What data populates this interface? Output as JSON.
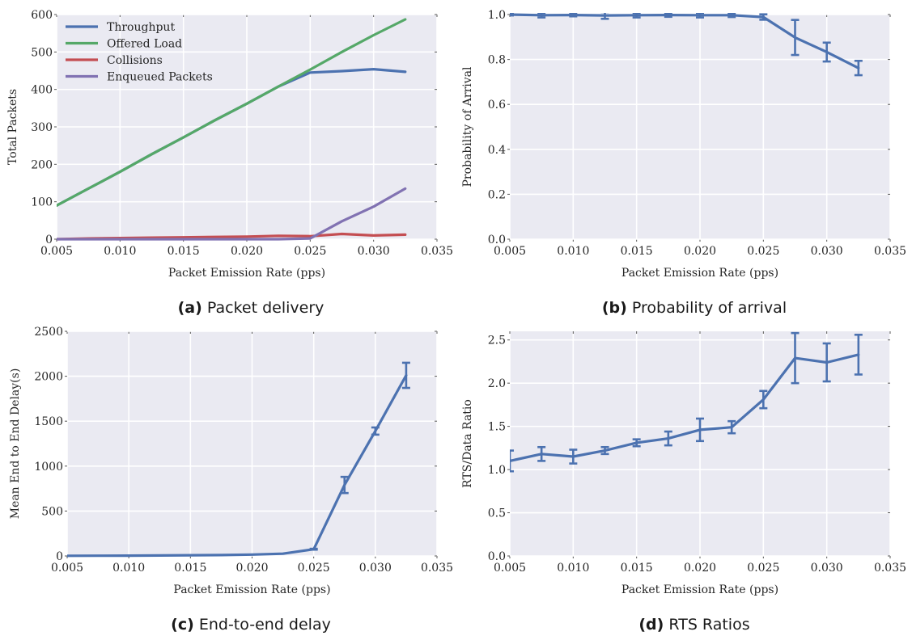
{
  "colors": {
    "blue": "#4c72b0",
    "green": "#55a868",
    "red": "#c44e52",
    "purple": "#8172b2"
  },
  "chart_data": [
    {
      "id": "a",
      "type": "line",
      "caption_tag": "(a)",
      "caption": "Packet delivery",
      "xlabel": "Packet Emission Rate (pps)",
      "ylabel": "Total Packets",
      "xlim": [
        0.005,
        0.035
      ],
      "ylim": [
        0,
        600
      ],
      "xticks": [
        "0.005",
        "0.010",
        "0.015",
        "0.020",
        "0.025",
        "0.030",
        "0.035"
      ],
      "yticks": [
        "0",
        "100",
        "200",
        "300",
        "400",
        "500",
        "600"
      ],
      "grid": true,
      "legend_position": "top-left",
      "series": [
        {
          "name": "Throughput",
          "color": "#4c72b0",
          "x": [
            0.005,
            0.0075,
            0.01,
            0.0125,
            0.015,
            0.0175,
            0.02,
            0.0225,
            0.025,
            0.0275,
            0.03,
            0.0325
          ],
          "y": [
            90,
            135,
            180,
            227,
            272,
            318,
            362,
            408,
            445,
            449,
            454,
            447
          ]
        },
        {
          "name": "Offered Load",
          "color": "#55a868",
          "x": [
            0.005,
            0.0075,
            0.01,
            0.0125,
            0.015,
            0.0175,
            0.02,
            0.0225,
            0.025,
            0.0275,
            0.03,
            0.0325
          ],
          "y": [
            90,
            135,
            180,
            227,
            272,
            318,
            362,
            408,
            453,
            500,
            545,
            587
          ]
        },
        {
          "name": "Collisions",
          "color": "#c44e52",
          "x": [
            0.005,
            0.0075,
            0.01,
            0.0125,
            0.015,
            0.0175,
            0.02,
            0.0225,
            0.025,
            0.0275,
            0.03,
            0.0325
          ],
          "y": [
            0,
            2,
            3,
            4,
            5,
            6,
            7,
            9,
            8,
            14,
            10,
            12
          ]
        },
        {
          "name": "Enqueued Packets",
          "color": "#8172b2",
          "x": [
            0.005,
            0.0075,
            0.01,
            0.0125,
            0.015,
            0.0175,
            0.02,
            0.0225,
            0.025,
            0.0275,
            0.03,
            0.0325
          ],
          "y": [
            0,
            0,
            0,
            0,
            0,
            0,
            0,
            0,
            2,
            48,
            87,
            135
          ]
        }
      ]
    },
    {
      "id": "b",
      "type": "line",
      "caption_tag": "(b)",
      "caption": "Probability of arrival",
      "xlabel": "Packet Emission Rate (pps)",
      "ylabel": "Probability of Arrival",
      "xlim": [
        0.005,
        0.035
      ],
      "ylim": [
        0,
        1
      ],
      "xticks": [
        "0.005",
        "0.010",
        "0.015",
        "0.020",
        "0.025",
        "0.030",
        "0.035"
      ],
      "yticks": [
        "0.0",
        "0.2",
        "0.4",
        "0.6",
        "0.8",
        "1.0"
      ],
      "grid": true,
      "series": [
        {
          "color": "#4c72b0",
          "x": [
            0.005,
            0.0075,
            0.01,
            0.0125,
            0.015,
            0.0175,
            0.02,
            0.0225,
            0.025,
            0.0275,
            0.03,
            0.0325
          ],
          "y": [
            1.0,
            0.997,
            0.998,
            0.996,
            0.997,
            0.998,
            0.997,
            0.997,
            0.989,
            0.898,
            0.833,
            0.762
          ],
          "err": [
            0.004,
            0.01,
            0.006,
            0.015,
            0.01,
            0.008,
            0.01,
            0.008,
            0.012,
            0.078,
            0.042,
            0.032
          ]
        }
      ]
    },
    {
      "id": "c",
      "type": "line",
      "caption_tag": "(c)",
      "caption": "End-to-end delay",
      "xlabel": "Packet Emission Rate (pps)",
      "ylabel": "Mean End to End Delay(s)",
      "xlim": [
        0.005,
        0.035
      ],
      "ylim": [
        0,
        2500
      ],
      "xticks": [
        "0.005",
        "0.010",
        "0.015",
        "0.020",
        "0.025",
        "0.030",
        "0.035"
      ],
      "yticks": [
        "0",
        "500",
        "1000",
        "1500",
        "2000",
        "2500"
      ],
      "grid": true,
      "series": [
        {
          "color": "#4c72b0",
          "x": [
            0.005,
            0.0075,
            0.01,
            0.0125,
            0.015,
            0.0175,
            0.02,
            0.0225,
            0.025,
            0.0275,
            0.03,
            0.0325
          ],
          "y": [
            2,
            3,
            4,
            5,
            8,
            10,
            15,
            25,
            75,
            790,
            1390,
            2010
          ],
          "err": [
            0,
            0,
            0,
            0,
            0,
            0,
            0,
            0,
            5,
            90,
            40,
            140
          ]
        }
      ]
    },
    {
      "id": "d",
      "type": "line",
      "caption_tag": "(d)",
      "caption": "RTS Ratios",
      "xlabel": "Packet Emission Rate (pps)",
      "ylabel": "RTS/Data Ratio",
      "xlim": [
        0.005,
        0.035
      ],
      "ylim": [
        0,
        2.6
      ],
      "xticks": [
        "0.005",
        "0.010",
        "0.015",
        "0.020",
        "0.025",
        "0.030",
        "0.035"
      ],
      "yticks": [
        "0.0",
        "0.5",
        "1.0",
        "1.5",
        "2.0",
        "2.5"
      ],
      "grid": true,
      "series": [
        {
          "color": "#4c72b0",
          "x": [
            0.005,
            0.0075,
            0.01,
            0.0125,
            0.015,
            0.0175,
            0.02,
            0.0225,
            0.025,
            0.0275,
            0.03,
            0.0325
          ],
          "y": [
            1.1,
            1.18,
            1.15,
            1.22,
            1.31,
            1.36,
            1.46,
            1.49,
            1.81,
            2.29,
            2.24,
            2.33
          ],
          "err": [
            0.12,
            0.08,
            0.08,
            0.04,
            0.04,
            0.08,
            0.13,
            0.07,
            0.1,
            0.29,
            0.22,
            0.23
          ]
        }
      ]
    }
  ]
}
